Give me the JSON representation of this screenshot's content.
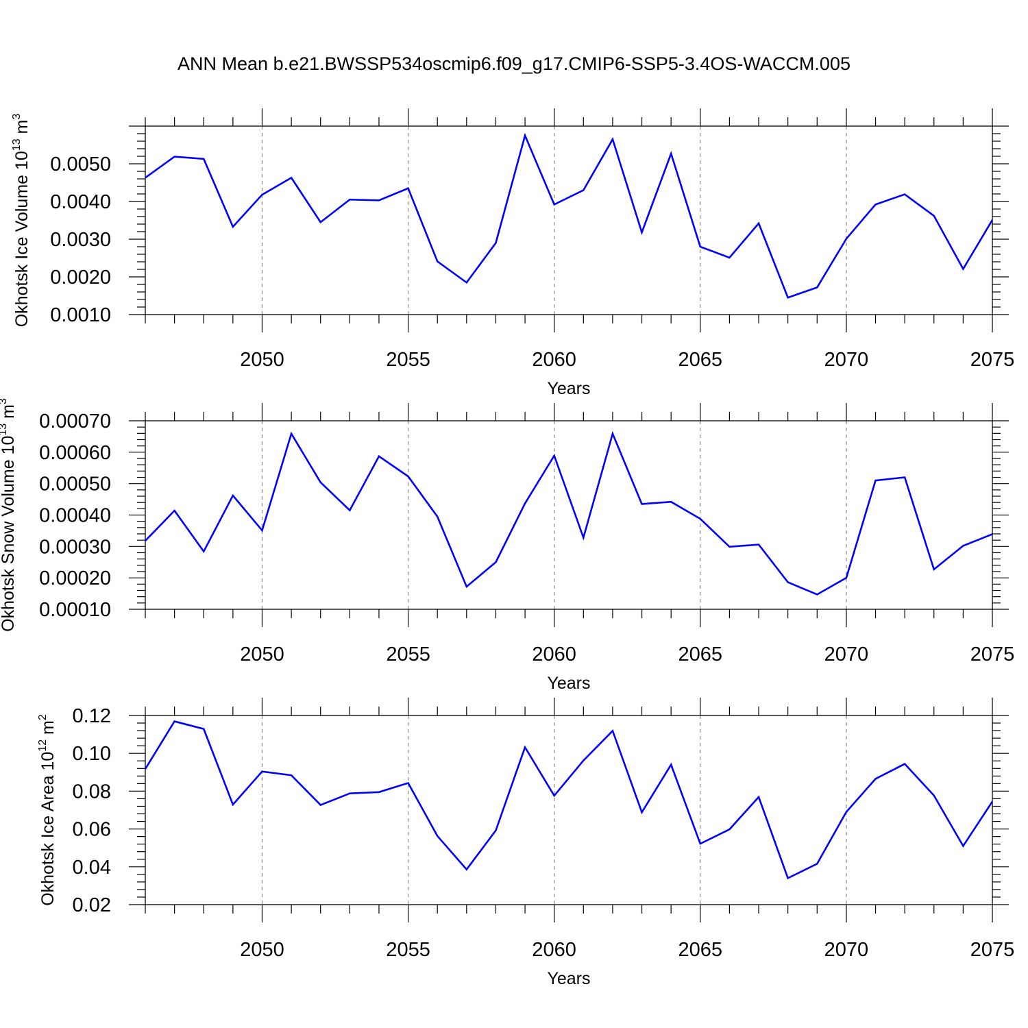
{
  "title": "ANN Mean b.e21.BWSSP534oscmip6.f09_g17.CMIP6-SSP5-3.4OS-WACCM.005",
  "line_color": "#0000ff",
  "chart_data": [
    {
      "type": "line",
      "xlabel": "Years",
      "ylabel": "Okhotsk Ice Volume 10",
      "ylabel_exp": "13",
      "ylabel_unit": " m",
      "ylabel_unit_exp": "3",
      "xlim": [
        2046,
        2075
      ],
      "ylim": [
        0.001,
        0.006
      ],
      "ytick_values": [
        0.001,
        0.002,
        0.003,
        0.004,
        0.005
      ],
      "ytick_labels": [
        "0.0010",
        "0.0020",
        "0.0030",
        "0.0040",
        "0.0050"
      ],
      "xtick_values": [
        2050,
        2055,
        2060,
        2065,
        2070,
        2075
      ],
      "xtick_labels": [
        "2050",
        "2055",
        "2060",
        "2065",
        "2070",
        "2075"
      ],
      "x": [
        2046,
        2047,
        2048,
        2049,
        2050,
        2051,
        2052,
        2053,
        2054,
        2055,
        2056,
        2057,
        2058,
        2059,
        2060,
        2061,
        2062,
        2063,
        2064,
        2065,
        2066,
        2067,
        2068,
        2069,
        2070,
        2071,
        2072,
        2073,
        2074,
        2075
      ],
      "values": [
        0.00463,
        0.00519,
        0.00513,
        0.00333,
        0.00418,
        0.00463,
        0.00345,
        0.00405,
        0.00403,
        0.00435,
        0.00241,
        0.00185,
        0.0029,
        0.00575,
        0.00392,
        0.0043,
        0.00565,
        0.00318,
        0.00527,
        0.0028,
        0.00251,
        0.00342,
        0.00145,
        0.00172,
        0.00301,
        0.00392,
        0.00419,
        0.00362,
        0.00221,
        0.00351
      ]
    },
    {
      "type": "line",
      "xlabel": "Years",
      "ylabel": "Okhotsk Snow Volume 10",
      "ylabel_exp": "13",
      "ylabel_unit": " m",
      "ylabel_unit_exp": "3",
      "xlim": [
        2046,
        2075
      ],
      "ylim": [
        0.0001,
        0.0007
      ],
      "ytick_values": [
        0.0001,
        0.0002,
        0.0003,
        0.0004,
        0.0005,
        0.0006,
        0.0007
      ],
      "ytick_labels": [
        "0.00010",
        "0.00020",
        "0.00030",
        "0.00040",
        "0.00050",
        "0.00060",
        "0.00070"
      ],
      "xtick_values": [
        2050,
        2055,
        2060,
        2065,
        2070,
        2075
      ],
      "xtick_labels": [
        "2050",
        "2055",
        "2060",
        "2065",
        "2070",
        "2075"
      ],
      "x": [
        2046,
        2047,
        2048,
        2049,
        2050,
        2051,
        2052,
        2053,
        2054,
        2055,
        2056,
        2057,
        2058,
        2059,
        2060,
        2061,
        2062,
        2063,
        2064,
        2065,
        2066,
        2067,
        2068,
        2069,
        2070,
        2071,
        2072,
        2073,
        2074,
        2075
      ],
      "values": [
        0.000318,
        0.000414,
        0.000284,
        0.000462,
        0.000351,
        0.000659,
        0.000504,
        0.000415,
        0.000587,
        0.000523,
        0.000395,
        0.000172,
        0.00025,
        0.000437,
        0.000589,
        0.000328,
        0.000659,
        0.000435,
        0.000442,
        0.000388,
        0.000299,
        0.000306,
        0.000186,
        0.000147,
        0.0002,
        0.00051,
        0.00052,
        0.000227,
        0.000302,
        0.000339
      ]
    },
    {
      "type": "line",
      "xlabel": "Years",
      "ylabel": "Okhotsk Ice Area 10",
      "ylabel_exp": "12",
      "ylabel_unit": " m",
      "ylabel_unit_exp": "2",
      "xlim": [
        2046,
        2075
      ],
      "ylim": [
        0.02,
        0.12
      ],
      "ytick_values": [
        0.02,
        0.04,
        0.06,
        0.08,
        0.1,
        0.12
      ],
      "ytick_labels": [
        "0.02",
        "0.04",
        "0.06",
        "0.08",
        "0.10",
        "0.12"
      ],
      "xtick_values": [
        2050,
        2055,
        2060,
        2065,
        2070,
        2075
      ],
      "xtick_labels": [
        "2050",
        "2055",
        "2060",
        "2065",
        "2070",
        "2075"
      ],
      "x": [
        2046,
        2047,
        2048,
        2049,
        2050,
        2051,
        2052,
        2053,
        2054,
        2055,
        2056,
        2057,
        2058,
        2059,
        2060,
        2061,
        2062,
        2063,
        2064,
        2065,
        2066,
        2067,
        2068,
        2069,
        2070,
        2071,
        2072,
        2073,
        2074,
        2075
      ],
      "values": [
        0.0917,
        0.1169,
        0.1129,
        0.0729,
        0.0904,
        0.0884,
        0.0727,
        0.0788,
        0.0795,
        0.0843,
        0.0563,
        0.0386,
        0.0592,
        0.1032,
        0.0776,
        0.0962,
        0.1119,
        0.0688,
        0.094,
        0.0522,
        0.0598,
        0.0769,
        0.034,
        0.0416,
        0.069,
        0.0865,
        0.0944,
        0.0777,
        0.051,
        0.0745
      ]
    }
  ]
}
